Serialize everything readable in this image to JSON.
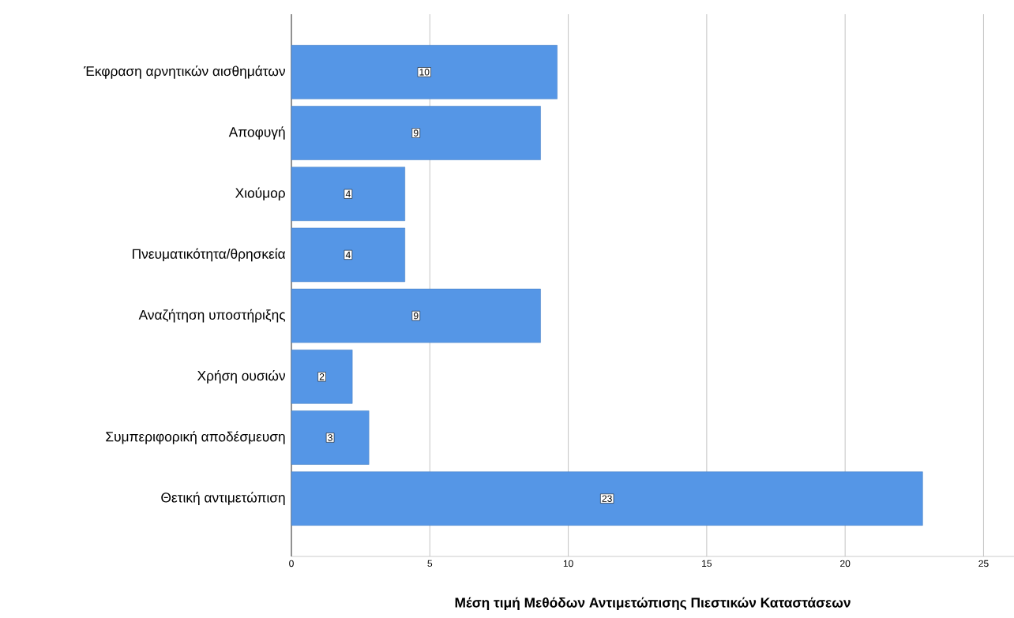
{
  "chart_data": {
    "type": "bar",
    "orientation": "horizontal",
    "categories": [
      "Έκφραση αρνητικών αισθημάτων",
      "Αποφυγή",
      "Χιούμορ",
      "Πνευματικότητα/θρησκεία",
      "Αναζήτηση υποστήριξης",
      "Χρήση ουσιών",
      "Συμπεριφορική αποδέσμευση",
      "Θετική αντιμετώπιση"
    ],
    "values": [
      9.6,
      9.0,
      4.1,
      4.1,
      9.0,
      2.2,
      2.8,
      22.8
    ],
    "value_labels": [
      "10",
      "9",
      "4",
      "4",
      "9",
      "2",
      "3",
      "23"
    ],
    "color": "#5596e6",
    "xlabel": "Μέση τιμή Μεθόδων Αντιμετώπισης Πιεστικών Καταστάσεων",
    "xlim": [
      0,
      26.1
    ],
    "xticks": [
      0,
      5,
      10,
      15,
      20,
      25
    ],
    "grid": "x"
  }
}
